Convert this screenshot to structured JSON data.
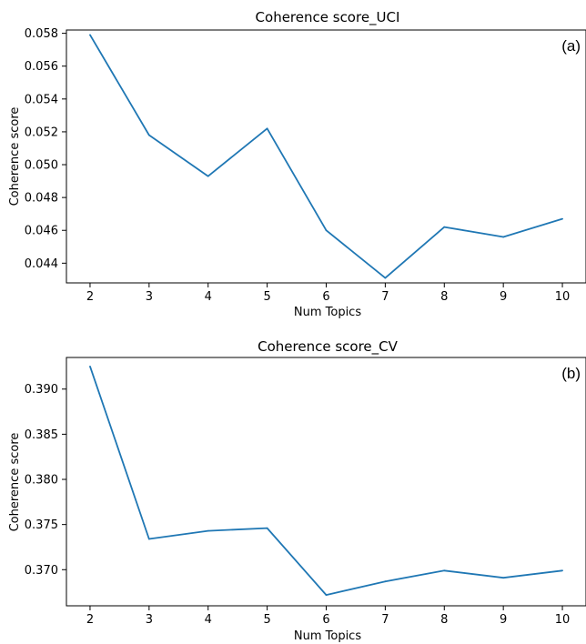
{
  "chart_data": [
    {
      "type": "line",
      "title": "Coherence score_UCI",
      "panel_label": "(a)",
      "xlabel": "Num Topics",
      "ylabel": "Coherence score",
      "x": [
        2,
        3,
        4,
        5,
        6,
        7,
        8,
        9,
        10
      ],
      "series": [
        {
          "values": [
            0.0579,
            0.0518,
            0.0493,
            0.0522,
            0.046,
            0.0431,
            0.0462,
            0.0456,
            0.0467
          ]
        }
      ],
      "xlim": [
        1.6,
        10.4
      ],
      "ylim": [
        0.0428,
        0.0582
      ],
      "xticks": [
        2,
        3,
        4,
        5,
        6,
        7,
        8,
        9,
        10
      ],
      "xtick_labels": [
        "2",
        "3",
        "4",
        "5",
        "6",
        "7",
        "8",
        "9",
        "10"
      ],
      "yticks": [
        0.044,
        0.046,
        0.048,
        0.05,
        0.052,
        0.054,
        0.056,
        0.058
      ],
      "ytick_labels": [
        "0.044",
        "0.046",
        "0.048",
        "0.050",
        "0.052",
        "0.054",
        "0.056",
        "0.058"
      ],
      "grid": false,
      "line_color": "#1f77b4"
    },
    {
      "type": "line",
      "title": "Coherence score_CV",
      "panel_label": "(b)",
      "xlabel": "Num Topics",
      "ylabel": "Coherence score",
      "x": [
        2,
        3,
        4,
        5,
        6,
        7,
        8,
        9,
        10
      ],
      "series": [
        {
          "values": [
            0.3925,
            0.3734,
            0.3743,
            0.3746,
            0.3672,
            0.3687,
            0.3699,
            0.3691,
            0.3699
          ]
        }
      ],
      "xlim": [
        1.6,
        10.4
      ],
      "ylim": [
        0.366,
        0.3935
      ],
      "xticks": [
        2,
        3,
        4,
        5,
        6,
        7,
        8,
        9,
        10
      ],
      "xtick_labels": [
        "2",
        "3",
        "4",
        "5",
        "6",
        "7",
        "8",
        "9",
        "10"
      ],
      "yticks": [
        0.37,
        0.375,
        0.38,
        0.385,
        0.39
      ],
      "ytick_labels": [
        "0.370",
        "0.375",
        "0.380",
        "0.385",
        "0.390"
      ],
      "grid": false,
      "line_color": "#1f77b4"
    }
  ]
}
